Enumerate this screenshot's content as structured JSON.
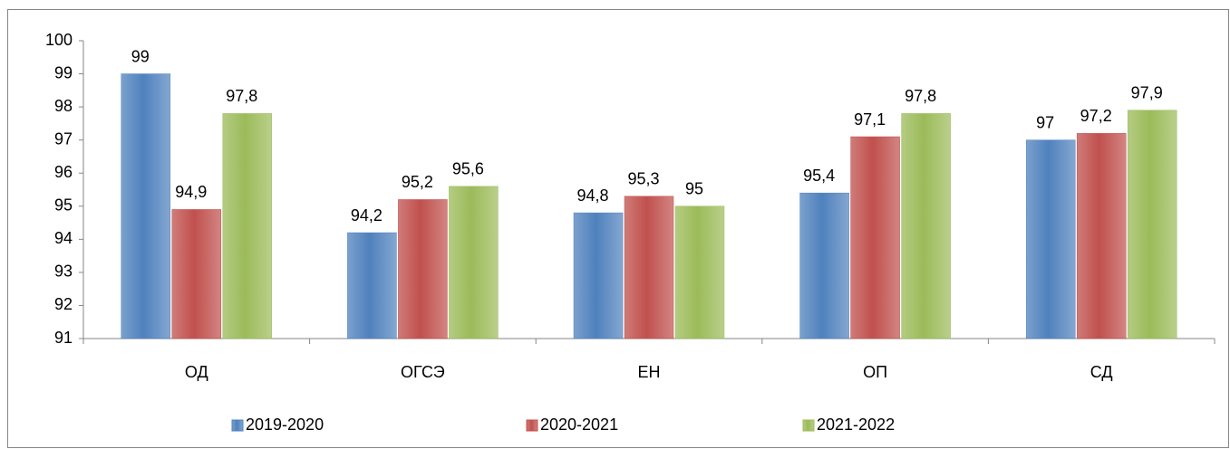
{
  "chart_data": {
    "type": "bar",
    "categories": [
      "ОД",
      "ОГСЭ",
      "ЕН",
      "ОП",
      "СД"
    ],
    "series": [
      {
        "name": "2019-2020",
        "color": "#4f81bd",
        "values": [
          99,
          94.2,
          94.8,
          95.4,
          97
        ],
        "value_labels": [
          "99",
          "94,2",
          "94,8",
          "95,4",
          "97"
        ]
      },
      {
        "name": "2020-2021",
        "color": "#c0504d",
        "values": [
          94.9,
          95.2,
          95.3,
          97.1,
          97.2
        ],
        "value_labels": [
          "94,9",
          "95,2",
          "95,3",
          "97,1",
          "97,2"
        ]
      },
      {
        "name": "2021-2022",
        "color": "#9bbb59",
        "values": [
          97.8,
          95.6,
          95,
          97.8,
          97.9
        ],
        "value_labels": [
          "97,8",
          "95,6",
          "95",
          "97,8",
          "97,9"
        ]
      }
    ],
    "ylim": [
      91,
      100
    ],
    "yticks": [
      91,
      92,
      93,
      94,
      95,
      96,
      97,
      98,
      99,
      100
    ],
    "legend": "bottom"
  }
}
